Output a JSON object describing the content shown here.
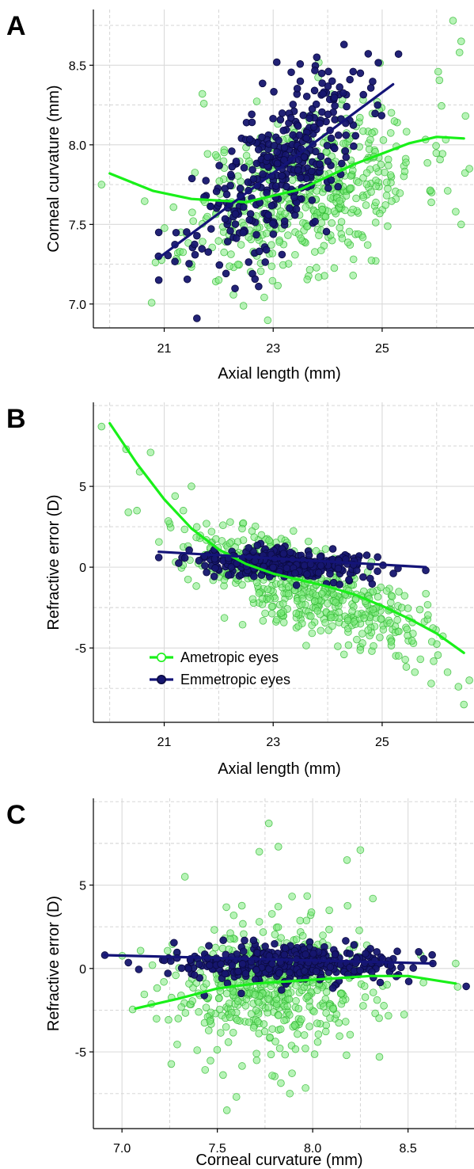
{
  "colors": {
    "ametropic_fill": "#7CEA7C",
    "ametropic_stroke": "#2EB82E",
    "ametropic_line": "#19F019",
    "emmetropic_fill": "#16166F",
    "emmetropic_stroke": "#0A0A40",
    "emmetropic_line": "#141478",
    "grid_major": "#DADADA",
    "grid_minor": "#D0D0D0"
  },
  "legend": {
    "position": "bottom-left",
    "items": [
      {
        "label": "Ametropic eyes",
        "series": "ametropic"
      },
      {
        "label": "Emmetropic eyes",
        "series": "emmetropic"
      }
    ]
  },
  "chart_data": [
    {
      "type": "scatter",
      "panel": "A",
      "xlabel": "Axial length (mm)",
      "ylabel": "Corneal curvature (mm)",
      "xlim": [
        19.7,
        26.7
      ],
      "ylim": [
        6.85,
        8.85
      ],
      "xticks": [
        21,
        23,
        25
      ],
      "yticks": [
        7.0,
        7.5,
        8.0,
        8.5
      ],
      "ytick_labels": [
        "7.0",
        "7.5",
        "8.0",
        "8.5"
      ],
      "grid": true,
      "series": [
        {
          "key": "ametropic",
          "name": "Ametropic eyes",
          "cloud": {
            "n": 520,
            "cx": 23.6,
            "sx": 1.05,
            "cy": 7.72,
            "sy": 0.25,
            "slope": 0.1,
            "seed": 11
          },
          "points": [
            [
              19.85,
              7.75
            ],
            [
              26.3,
              8.78
            ],
            [
              26.45,
              8.65
            ],
            [
              26.42,
              8.58
            ],
            [
              26.35,
              7.58
            ],
            [
              26.45,
              7.5
            ],
            [
              26.6,
              7.85
            ],
            [
              21.7,
              8.32
            ],
            [
              21.5,
              7.25
            ],
            [
              22.0,
              7.15
            ]
          ],
          "fit": {
            "x": [
              20.0,
              20.8,
              21.5,
              22.5,
              23.5,
              24.5,
              25.5,
              26.0,
              26.5
            ],
            "y": [
              7.82,
              7.71,
              7.66,
              7.64,
              7.72,
              7.88,
              8.01,
              8.05,
              8.04
            ]
          }
        },
        {
          "key": "emmetropic",
          "name": "Emmetropic eyes",
          "cloud": {
            "n": 360,
            "cx": 23.1,
            "sx": 0.75,
            "cy": 7.85,
            "sy": 0.22,
            "slope": 0.24,
            "seed": 23
          },
          "points": [
            [
              21.6,
              6.91
            ],
            [
              20.9,
              7.15
            ],
            [
              20.9,
              7.45
            ],
            [
              24.3,
              8.63
            ],
            [
              25.3,
              8.57
            ],
            [
              23.8,
              8.55
            ],
            [
              24.6,
              8.45
            ]
          ],
          "fit": {
            "x": [
              20.9,
              25.2
            ],
            "y": [
              7.29,
              8.38
            ]
          }
        }
      ]
    },
    {
      "type": "scatter",
      "panel": "B",
      "xlabel": "Axial length (mm)",
      "ylabel": "Refractive error (D)",
      "xlim": [
        19.7,
        26.7
      ],
      "ylim": [
        -9.6,
        10.2
      ],
      "xticks": [
        21,
        23,
        25
      ],
      "yticks": [
        -5,
        0,
        5
      ],
      "ytick_labels": [
        "-5",
        "0",
        "5"
      ],
      "grid": true,
      "series": [
        {
          "key": "ametropic",
          "name": "Ametropic eyes",
          "cloud": {
            "n": 520,
            "cx": 23.6,
            "sx": 1.05,
            "cy": -1.2,
            "sy": 1.3,
            "slope": -1.25,
            "seed": 37
          },
          "points": [
            [
              19.85,
              8.7
            ],
            [
              20.3,
              7.3
            ],
            [
              20.75,
              7.1
            ],
            [
              20.55,
              5.9
            ],
            [
              20.5,
              3.5
            ],
            [
              21.2,
              4.4
            ],
            [
              21.5,
              5.0
            ],
            [
              26.4,
              -7.4
            ],
            [
              26.6,
              -7.0
            ],
            [
              26.5,
              -8.5
            ],
            [
              26.2,
              -6.5
            ],
            [
              25.9,
              -7.2
            ],
            [
              24.3,
              -5.4
            ],
            [
              25.6,
              -6.5
            ]
          ],
          "fit": {
            "x": [
              20.0,
              20.5,
              21.0,
              21.5,
              22.0,
              22.5,
              23.0,
              23.5,
              24.0,
              24.5,
              25.0,
              25.5,
              26.0,
              26.5
            ],
            "y": [
              8.9,
              6.4,
              4.2,
              2.4,
              1.1,
              0.2,
              -0.4,
              -0.8,
              -1.2,
              -1.7,
              -2.4,
              -3.2,
              -4.1,
              -5.3
            ]
          }
        },
        {
          "key": "emmetropic",
          "name": "Emmetropic eyes",
          "cloud": {
            "n": 360,
            "cx": 23.2,
            "sx": 0.8,
            "cy": 0.2,
            "sy": 0.45,
            "slope": -0.12,
            "seed": 41
          },
          "points": [
            [
              20.9,
              0.6
            ],
            [
              25.8,
              -0.2
            ]
          ],
          "fit": {
            "x": [
              20.9,
              25.8
            ],
            "y": [
              0.95,
              0.0
            ]
          }
        }
      ]
    },
    {
      "type": "scatter",
      "panel": "C",
      "xlabel": "Corneal curvature (mm)",
      "ylabel": "Refractive error (D)",
      "xlim": [
        6.85,
        8.85
      ],
      "ylim": [
        -9.6,
        10.2
      ],
      "xticks": [
        7.0,
        7.5,
        8.0,
        8.5
      ],
      "xtick_labels": [
        "7.0",
        "7.5",
        "8.0",
        "8.5"
      ],
      "yticks": [
        -5,
        0,
        5
      ],
      "ytick_labels": [
        "-5",
        "0",
        "5"
      ],
      "grid": true,
      "series": [
        {
          "key": "ametropic",
          "name": "Ametropic eyes",
          "cloud": {
            "n": 520,
            "cx": 7.8,
            "sx": 0.28,
            "cy": -1.2,
            "sy": 2.0,
            "slope": 0.3,
            "seed": 53
          },
          "points": [
            [
              7.77,
              8.7
            ],
            [
              7.82,
              7.3
            ],
            [
              7.72,
              7.0
            ],
            [
              8.25,
              7.1
            ],
            [
              8.18,
              6.5
            ],
            [
              7.33,
              5.5
            ],
            [
              7.55,
              -8.5
            ],
            [
              7.6,
              -7.7
            ],
            [
              7.88,
              -7.5
            ],
            [
              8.35,
              -5.3
            ],
            [
              8.76,
              -1.1
            ],
            [
              8.75,
              0.3
            ]
          ],
          "fit": {
            "x": [
              7.07,
              7.3,
              7.5,
              7.7,
              7.9,
              8.1,
              8.3,
              8.5,
              8.75
            ],
            "y": [
              -2.4,
              -1.8,
              -1.2,
              -0.9,
              -0.75,
              -0.6,
              -0.45,
              -0.45,
              -0.9
            ]
          }
        },
        {
          "key": "emmetropic",
          "name": "Emmetropic eyes",
          "cloud": {
            "n": 360,
            "cx": 7.85,
            "sx": 0.28,
            "cy": 0.2,
            "sy": 0.55,
            "slope": -0.1,
            "seed": 67
          },
          "points": [
            [
              6.91,
              0.8
            ],
            [
              8.63,
              0.3
            ]
          ],
          "fit": {
            "x": [
              6.91,
              8.63
            ],
            "y": [
              0.8,
              0.3
            ]
          }
        }
      ]
    }
  ]
}
